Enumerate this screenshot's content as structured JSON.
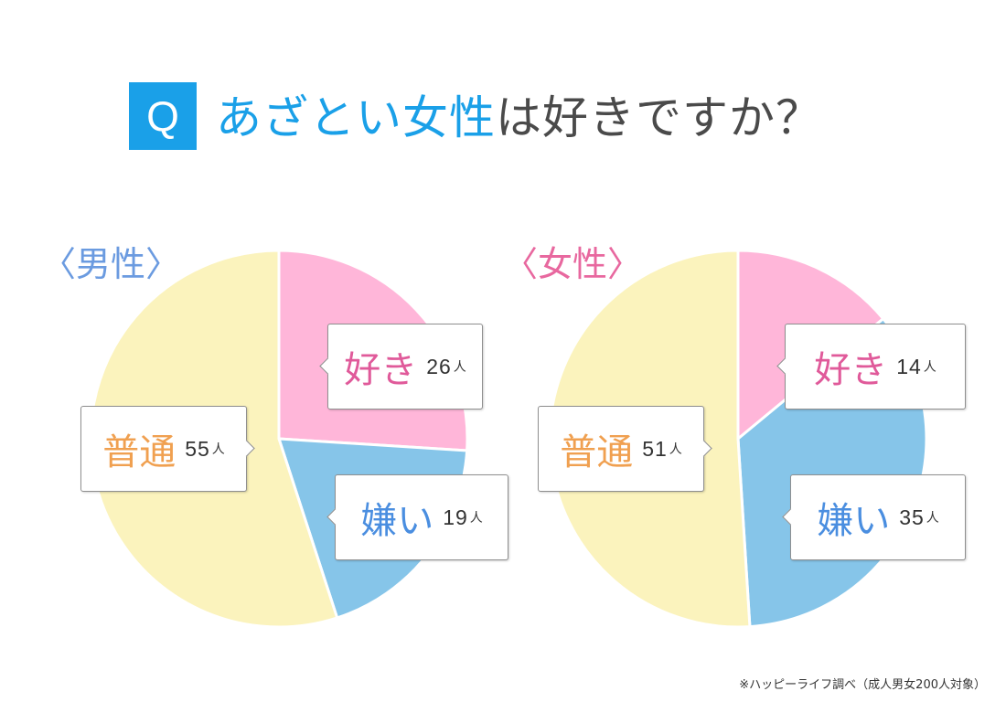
{
  "header": {
    "q_label": "Q",
    "question_highlight": "あざとい女性",
    "question_rest": "は好きですか？"
  },
  "colors": {
    "like": "#ffb6d9",
    "dislike": "#86c5e9",
    "neutral": "#fbf3bd"
  },
  "chart_data": [
    {
      "type": "pie",
      "title": "〈男性〉",
      "unit": "人",
      "categories": [
        "好き",
        "嫌い",
        "普通"
      ],
      "values": [
        26,
        19,
        55
      ]
    },
    {
      "type": "pie",
      "title": "〈女性〉",
      "unit": "人",
      "categories": [
        "好き",
        "嫌い",
        "普通"
      ],
      "values": [
        14,
        35,
        51
      ]
    }
  ],
  "footer": {
    "source": "※ハッピーライフ調べ（成人男女200人対象）"
  }
}
